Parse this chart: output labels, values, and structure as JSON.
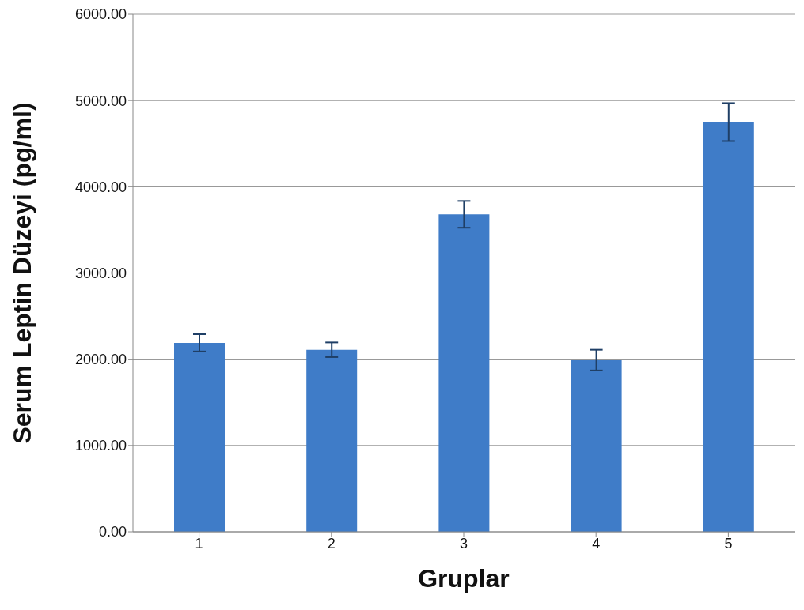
{
  "chart_data": {
    "type": "bar",
    "xlabel": "Gruplar",
    "ylabel": "Serum Leptin Düzeyi (pg/ml)",
    "categories": [
      "1",
      "2",
      "3",
      "4",
      "5"
    ],
    "values": [
      2190,
      2110,
      3680,
      1990,
      4750
    ],
    "errors": [
      100,
      85,
      155,
      120,
      220
    ],
    "color": "#3f7cc8",
    "ylim": [
      0,
      6000
    ],
    "yticks": [
      {
        "value": 0,
        "label": "0.00"
      },
      {
        "value": 1000,
        "label": "1000.00"
      },
      {
        "value": 2000,
        "label": "2000.00"
      },
      {
        "value": 3000,
        "label": "3000.00"
      },
      {
        "value": 4000,
        "label": "4000.00"
      },
      {
        "value": 5000,
        "label": "5000.00"
      },
      {
        "value": 6000,
        "label": "6000.00"
      }
    ],
    "grid": "y",
    "legend": false
  }
}
